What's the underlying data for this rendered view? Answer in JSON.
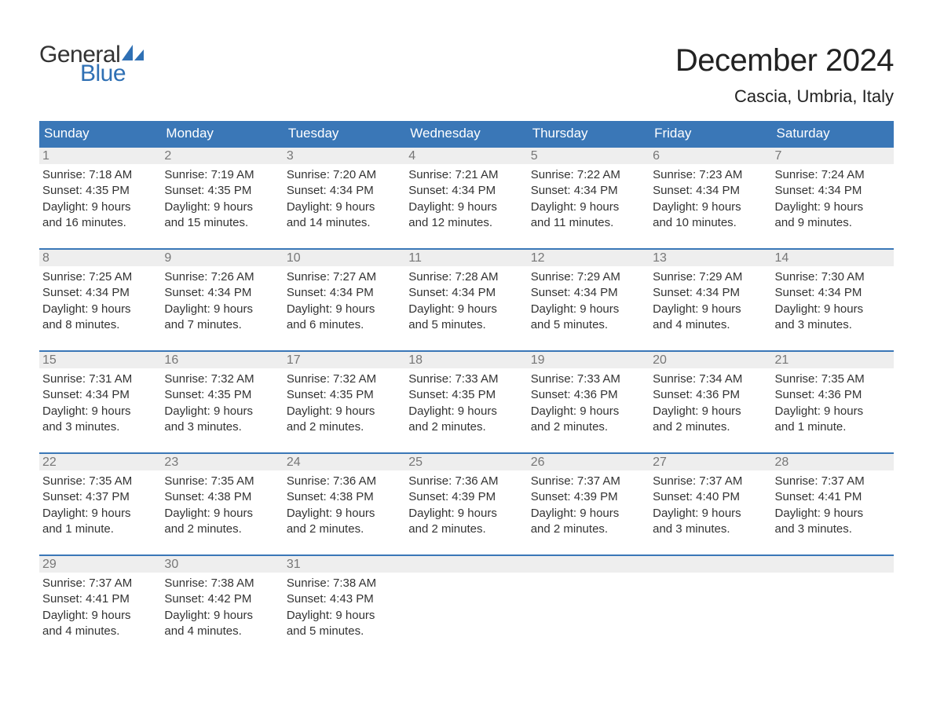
{
  "logo": {
    "text_general": "General",
    "text_blue": "Blue",
    "sail_color": "#2f70b4",
    "text_color_dark": "#333333"
  },
  "header": {
    "month_title": "December 2024",
    "location": "Cascia, Umbria, Italy"
  },
  "colors": {
    "header_bg": "#3a77b7",
    "header_text": "#ffffff",
    "daynum_bg": "#eeeeee",
    "daynum_text": "#777777",
    "divider": "#3a77b7",
    "body_text": "#333333",
    "background": "#ffffff"
  },
  "weekdays": [
    "Sunday",
    "Monday",
    "Tuesday",
    "Wednesday",
    "Thursday",
    "Friday",
    "Saturday"
  ],
  "weeks": [
    [
      {
        "day": "1",
        "sunrise": "Sunrise: 7:18 AM",
        "sunset": "Sunset: 4:35 PM",
        "daylight1": "Daylight: 9 hours",
        "daylight2": "and 16 minutes."
      },
      {
        "day": "2",
        "sunrise": "Sunrise: 7:19 AM",
        "sunset": "Sunset: 4:35 PM",
        "daylight1": "Daylight: 9 hours",
        "daylight2": "and 15 minutes."
      },
      {
        "day": "3",
        "sunrise": "Sunrise: 7:20 AM",
        "sunset": "Sunset: 4:34 PM",
        "daylight1": "Daylight: 9 hours",
        "daylight2": "and 14 minutes."
      },
      {
        "day": "4",
        "sunrise": "Sunrise: 7:21 AM",
        "sunset": "Sunset: 4:34 PM",
        "daylight1": "Daylight: 9 hours",
        "daylight2": "and 12 minutes."
      },
      {
        "day": "5",
        "sunrise": "Sunrise: 7:22 AM",
        "sunset": "Sunset: 4:34 PM",
        "daylight1": "Daylight: 9 hours",
        "daylight2": "and 11 minutes."
      },
      {
        "day": "6",
        "sunrise": "Sunrise: 7:23 AM",
        "sunset": "Sunset: 4:34 PM",
        "daylight1": "Daylight: 9 hours",
        "daylight2": "and 10 minutes."
      },
      {
        "day": "7",
        "sunrise": "Sunrise: 7:24 AM",
        "sunset": "Sunset: 4:34 PM",
        "daylight1": "Daylight: 9 hours",
        "daylight2": "and 9 minutes."
      }
    ],
    [
      {
        "day": "8",
        "sunrise": "Sunrise: 7:25 AM",
        "sunset": "Sunset: 4:34 PM",
        "daylight1": "Daylight: 9 hours",
        "daylight2": "and 8 minutes."
      },
      {
        "day": "9",
        "sunrise": "Sunrise: 7:26 AM",
        "sunset": "Sunset: 4:34 PM",
        "daylight1": "Daylight: 9 hours",
        "daylight2": "and 7 minutes."
      },
      {
        "day": "10",
        "sunrise": "Sunrise: 7:27 AM",
        "sunset": "Sunset: 4:34 PM",
        "daylight1": "Daylight: 9 hours",
        "daylight2": "and 6 minutes."
      },
      {
        "day": "11",
        "sunrise": "Sunrise: 7:28 AM",
        "sunset": "Sunset: 4:34 PM",
        "daylight1": "Daylight: 9 hours",
        "daylight2": "and 5 minutes."
      },
      {
        "day": "12",
        "sunrise": "Sunrise: 7:29 AM",
        "sunset": "Sunset: 4:34 PM",
        "daylight1": "Daylight: 9 hours",
        "daylight2": "and 5 minutes."
      },
      {
        "day": "13",
        "sunrise": "Sunrise: 7:29 AM",
        "sunset": "Sunset: 4:34 PM",
        "daylight1": "Daylight: 9 hours",
        "daylight2": "and 4 minutes."
      },
      {
        "day": "14",
        "sunrise": "Sunrise: 7:30 AM",
        "sunset": "Sunset: 4:34 PM",
        "daylight1": "Daylight: 9 hours",
        "daylight2": "and 3 minutes."
      }
    ],
    [
      {
        "day": "15",
        "sunrise": "Sunrise: 7:31 AM",
        "sunset": "Sunset: 4:34 PM",
        "daylight1": "Daylight: 9 hours",
        "daylight2": "and 3 minutes."
      },
      {
        "day": "16",
        "sunrise": "Sunrise: 7:32 AM",
        "sunset": "Sunset: 4:35 PM",
        "daylight1": "Daylight: 9 hours",
        "daylight2": "and 3 minutes."
      },
      {
        "day": "17",
        "sunrise": "Sunrise: 7:32 AM",
        "sunset": "Sunset: 4:35 PM",
        "daylight1": "Daylight: 9 hours",
        "daylight2": "and 2 minutes."
      },
      {
        "day": "18",
        "sunrise": "Sunrise: 7:33 AM",
        "sunset": "Sunset: 4:35 PM",
        "daylight1": "Daylight: 9 hours",
        "daylight2": "and 2 minutes."
      },
      {
        "day": "19",
        "sunrise": "Sunrise: 7:33 AM",
        "sunset": "Sunset: 4:36 PM",
        "daylight1": "Daylight: 9 hours",
        "daylight2": "and 2 minutes."
      },
      {
        "day": "20",
        "sunrise": "Sunrise: 7:34 AM",
        "sunset": "Sunset: 4:36 PM",
        "daylight1": "Daylight: 9 hours",
        "daylight2": "and 2 minutes."
      },
      {
        "day": "21",
        "sunrise": "Sunrise: 7:35 AM",
        "sunset": "Sunset: 4:36 PM",
        "daylight1": "Daylight: 9 hours",
        "daylight2": "and 1 minute."
      }
    ],
    [
      {
        "day": "22",
        "sunrise": "Sunrise: 7:35 AM",
        "sunset": "Sunset: 4:37 PM",
        "daylight1": "Daylight: 9 hours",
        "daylight2": "and 1 minute."
      },
      {
        "day": "23",
        "sunrise": "Sunrise: 7:35 AM",
        "sunset": "Sunset: 4:38 PM",
        "daylight1": "Daylight: 9 hours",
        "daylight2": "and 2 minutes."
      },
      {
        "day": "24",
        "sunrise": "Sunrise: 7:36 AM",
        "sunset": "Sunset: 4:38 PM",
        "daylight1": "Daylight: 9 hours",
        "daylight2": "and 2 minutes."
      },
      {
        "day": "25",
        "sunrise": "Sunrise: 7:36 AM",
        "sunset": "Sunset: 4:39 PM",
        "daylight1": "Daylight: 9 hours",
        "daylight2": "and 2 minutes."
      },
      {
        "day": "26",
        "sunrise": "Sunrise: 7:37 AM",
        "sunset": "Sunset: 4:39 PM",
        "daylight1": "Daylight: 9 hours",
        "daylight2": "and 2 minutes."
      },
      {
        "day": "27",
        "sunrise": "Sunrise: 7:37 AM",
        "sunset": "Sunset: 4:40 PM",
        "daylight1": "Daylight: 9 hours",
        "daylight2": "and 3 minutes."
      },
      {
        "day": "28",
        "sunrise": "Sunrise: 7:37 AM",
        "sunset": "Sunset: 4:41 PM",
        "daylight1": "Daylight: 9 hours",
        "daylight2": "and 3 minutes."
      }
    ],
    [
      {
        "day": "29",
        "sunrise": "Sunrise: 7:37 AM",
        "sunset": "Sunset: 4:41 PM",
        "daylight1": "Daylight: 9 hours",
        "daylight2": "and 4 minutes."
      },
      {
        "day": "30",
        "sunrise": "Sunrise: 7:38 AM",
        "sunset": "Sunset: 4:42 PM",
        "daylight1": "Daylight: 9 hours",
        "daylight2": "and 4 minutes."
      },
      {
        "day": "31",
        "sunrise": "Sunrise: 7:38 AM",
        "sunset": "Sunset: 4:43 PM",
        "daylight1": "Daylight: 9 hours",
        "daylight2": "and 5 minutes."
      },
      null,
      null,
      null,
      null
    ]
  ]
}
